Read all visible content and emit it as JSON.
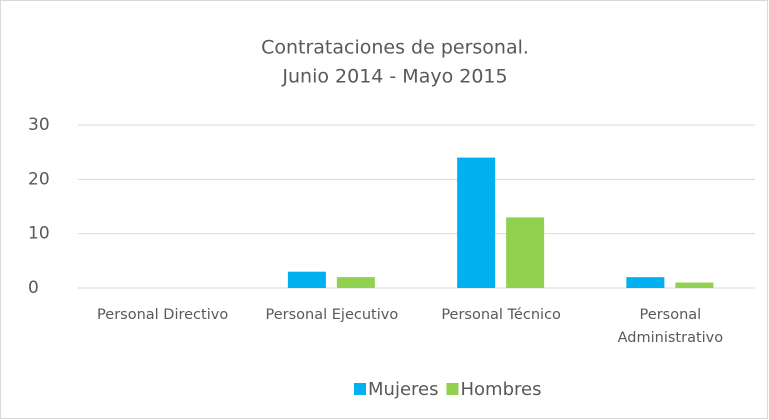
{
  "chart_data": {
    "type": "bar",
    "title": [
      "Contrataciones de personal.",
      "Junio 2014 - Mayo 2015"
    ],
    "categories": [
      "Personal Directivo",
      "Personal Ejecutivo",
      "Personal Técnico",
      "Personal Administrativo"
    ],
    "series": [
      {
        "name": "Mujeres",
        "color": "#00b0f0",
        "values": [
          0,
          3,
          24,
          2
        ]
      },
      {
        "name": "Hombres",
        "color": "#92d050",
        "values": [
          0,
          2,
          13,
          1
        ]
      }
    ],
    "ylim": [
      0,
      30
    ],
    "yticks": [
      0,
      10,
      20,
      30
    ],
    "grid": true,
    "legend": "bottom"
  }
}
